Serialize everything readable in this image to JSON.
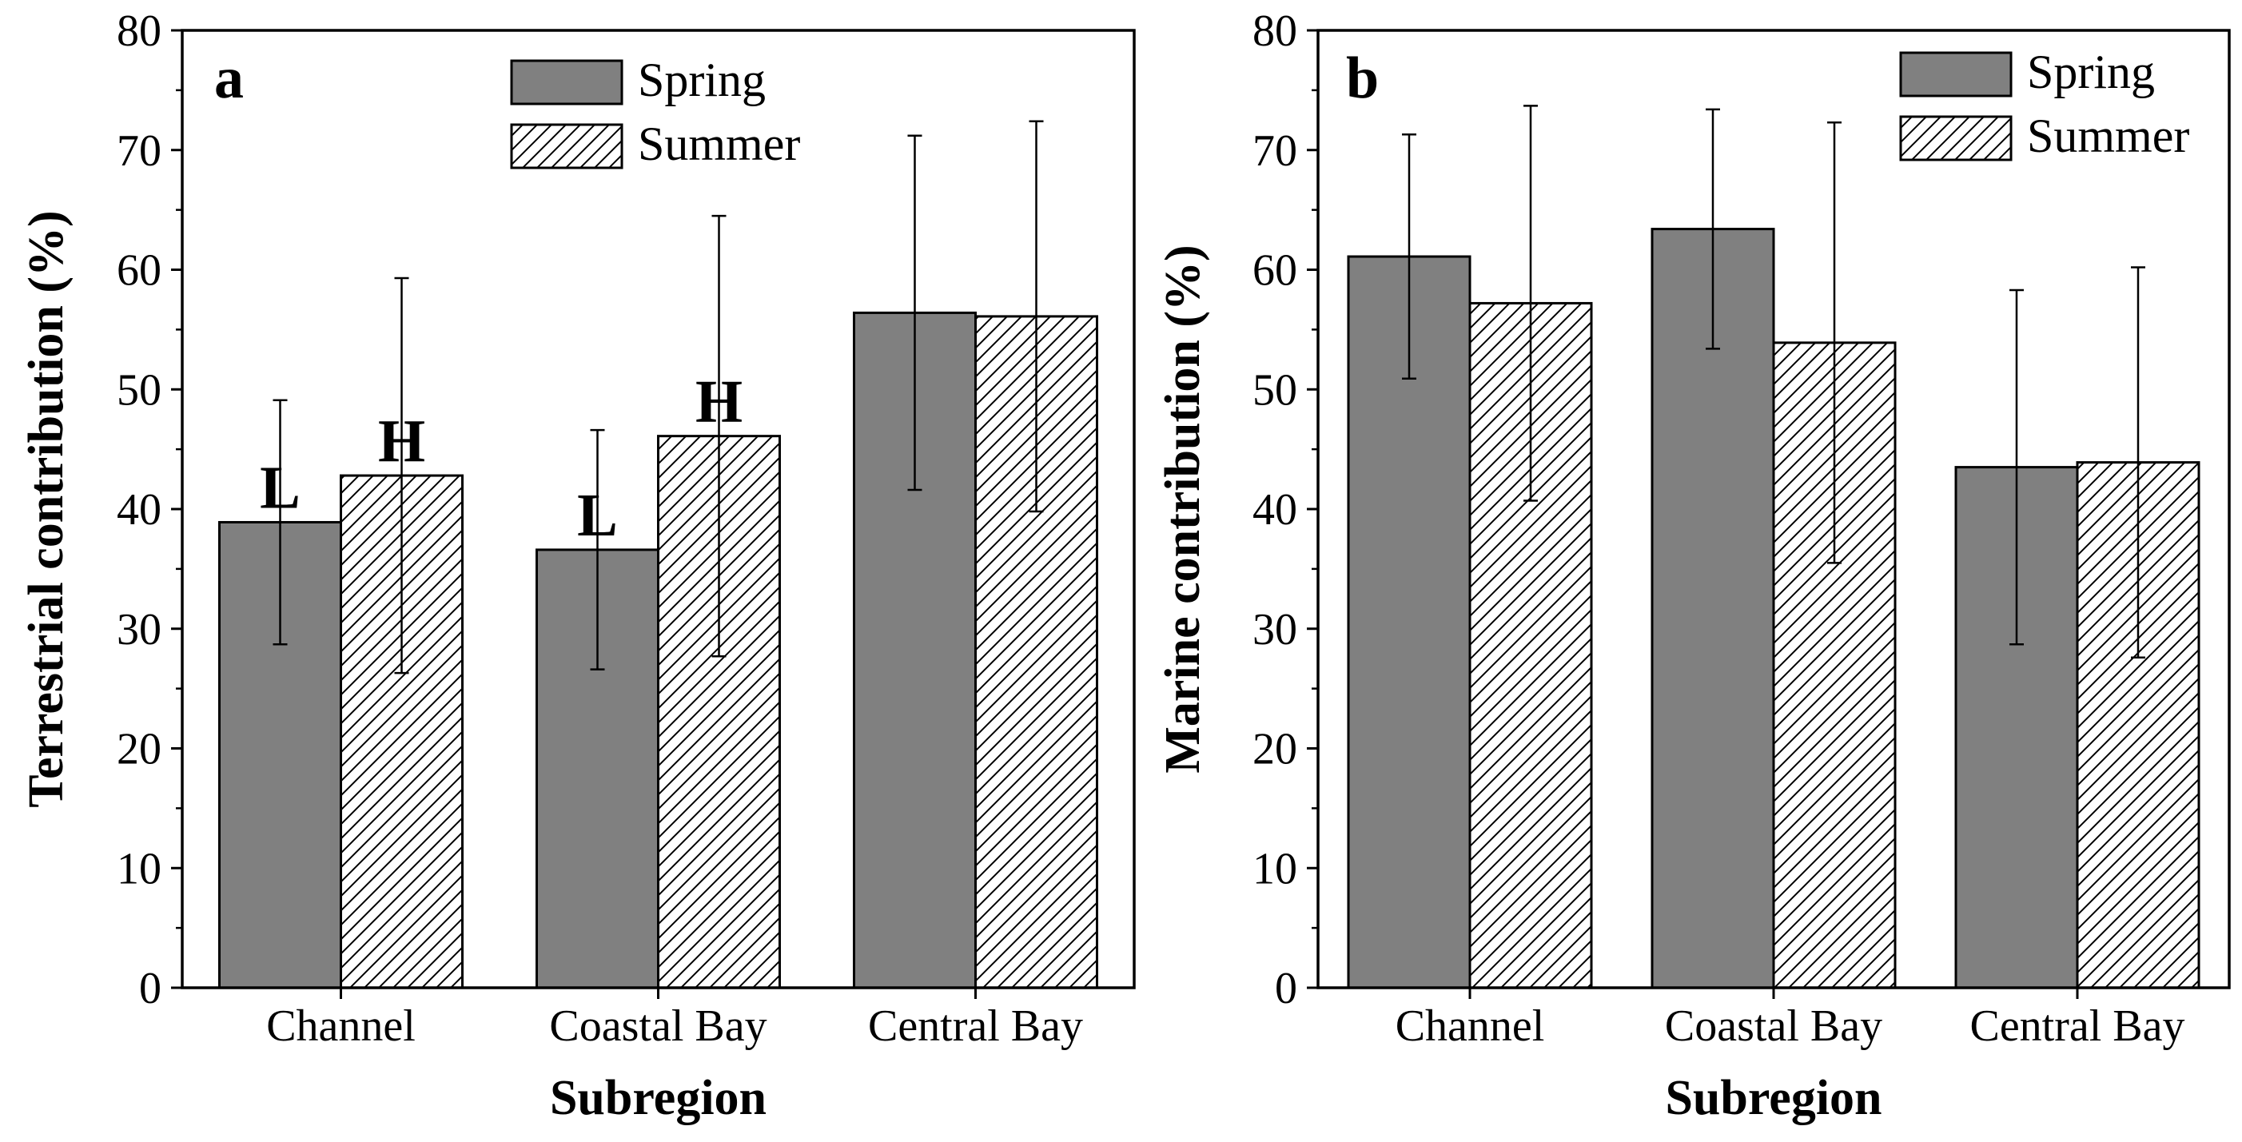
{
  "chart_data": [
    {
      "type": "bar",
      "panel_label": "a",
      "categories": [
        "Channel",
        "Coastal Bay",
        "Central Bay"
      ],
      "series": [
        {
          "name": "Spring",
          "values": [
            38.9,
            36.6,
            56.4
          ],
          "errors": [
            10.2,
            10.0,
            14.8
          ]
        },
        {
          "name": "Summer",
          "values": [
            42.8,
            46.1,
            56.1
          ],
          "errors": [
            16.5,
            18.4,
            16.3
          ]
        }
      ],
      "annotations": [
        {
          "text": "L",
          "category": 0,
          "series": 0
        },
        {
          "text": "H",
          "category": 0,
          "series": 1
        },
        {
          "text": "L",
          "category": 1,
          "series": 0
        },
        {
          "text": "H",
          "category": 1,
          "series": 1
        }
      ],
      "title": "",
      "xlabel": "Subregion",
      "ylabel": "Terrestrial contribution (%)",
      "ylim": [
        0,
        80
      ],
      "yticks": [
        0,
        10,
        20,
        30,
        40,
        50,
        60,
        70,
        80
      ],
      "grid": false,
      "legend_position": "top-right"
    },
    {
      "type": "bar",
      "panel_label": "b",
      "categories": [
        "Channel",
        "Coastal Bay",
        "Central Bay"
      ],
      "series": [
        {
          "name": "Spring",
          "values": [
            61.1,
            63.4,
            43.5
          ],
          "errors": [
            10.2,
            10.0,
            14.8
          ]
        },
        {
          "name": "Summer",
          "values": [
            57.2,
            53.9,
            43.9
          ],
          "errors": [
            16.5,
            18.4,
            16.3
          ]
        }
      ],
      "annotations": [],
      "title": "",
      "xlabel": "Subregion",
      "ylabel": "Marine contribution (%)",
      "ylim": [
        0,
        80
      ],
      "yticks": [
        0,
        10,
        20,
        30,
        40,
        50,
        60,
        70,
        80
      ],
      "grid": false,
      "legend_position": "top-right"
    }
  ],
  "colors": {
    "spring_fill": "#808080",
    "summer_fill": "#ffffff",
    "stroke": "#000000"
  }
}
